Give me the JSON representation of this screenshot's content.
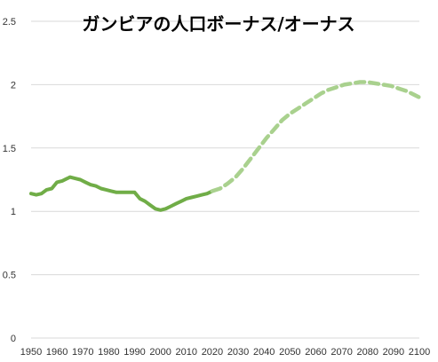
{
  "chart_data": {
    "type": "line",
    "title": "ガンビアの人口ボーナス/オーナス",
    "xlabel": "",
    "ylabel": "",
    "xlim": [
      1950,
      2100
    ],
    "ylim": [
      0,
      2.5
    ],
    "grid": true,
    "legend": "none",
    "x_ticks": [
      "1950",
      "1960",
      "1970",
      "1980",
      "1990",
      "2000",
      "2010",
      "2020",
      "2030",
      "2040",
      "2050",
      "2060",
      "2070",
      "2080",
      "2090",
      "2100"
    ],
    "y_ticks": [
      "0",
      "0.5",
      "1",
      "1.5",
      "2",
      "2.5"
    ],
    "series": [
      {
        "style": "solid",
        "color": "#70ad47",
        "points": [
          [
            1950,
            1.14
          ],
          [
            1952,
            1.13
          ],
          [
            1954,
            1.14
          ],
          [
            1956,
            1.17
          ],
          [
            1958,
            1.18
          ],
          [
            1960,
            1.23
          ],
          [
            1962,
            1.24
          ],
          [
            1964,
            1.26
          ],
          [
            1965,
            1.27
          ],
          [
            1967,
            1.26
          ],
          [
            1969,
            1.25
          ],
          [
            1971,
            1.23
          ],
          [
            1973,
            1.21
          ],
          [
            1975,
            1.2
          ],
          [
            1977,
            1.18
          ],
          [
            1979,
            1.17
          ],
          [
            1981,
            1.16
          ],
          [
            1983,
            1.15
          ],
          [
            1985,
            1.15
          ],
          [
            1987,
            1.15
          ],
          [
            1989,
            1.15
          ],
          [
            1990,
            1.15
          ],
          [
            1992,
            1.1
          ],
          [
            1994,
            1.08
          ],
          [
            1996,
            1.05
          ],
          [
            1998,
            1.02
          ],
          [
            2000,
            1.01
          ],
          [
            2002,
            1.02
          ],
          [
            2004,
            1.04
          ],
          [
            2006,
            1.06
          ],
          [
            2008,
            1.08
          ],
          [
            2010,
            1.1
          ],
          [
            2012,
            1.11
          ],
          [
            2014,
            1.12
          ],
          [
            2016,
            1.13
          ],
          [
            2018,
            1.14
          ],
          [
            2020,
            1.16
          ]
        ]
      },
      {
        "style": "dashed",
        "color": "#a9d18e",
        "points": [
          [
            2020,
            1.16
          ],
          [
            2023,
            1.18
          ],
          [
            2026,
            1.22
          ],
          [
            2029,
            1.27
          ],
          [
            2032,
            1.34
          ],
          [
            2035,
            1.42
          ],
          [
            2038,
            1.5
          ],
          [
            2041,
            1.58
          ],
          [
            2044,
            1.65
          ],
          [
            2047,
            1.72
          ],
          [
            2050,
            1.77
          ],
          [
            2053,
            1.81
          ],
          [
            2056,
            1.85
          ],
          [
            2059,
            1.89
          ],
          [
            2062,
            1.93
          ],
          [
            2065,
            1.96
          ],
          [
            2068,
            1.98
          ],
          [
            2071,
            2.0
          ],
          [
            2074,
            2.01
          ],
          [
            2077,
            2.02
          ],
          [
            2080,
            2.02
          ],
          [
            2083,
            2.01
          ],
          [
            2086,
            2.0
          ],
          [
            2089,
            1.99
          ],
          [
            2092,
            1.97
          ],
          [
            2095,
            1.95
          ],
          [
            2098,
            1.92
          ],
          [
            2100,
            1.9
          ]
        ]
      }
    ]
  }
}
